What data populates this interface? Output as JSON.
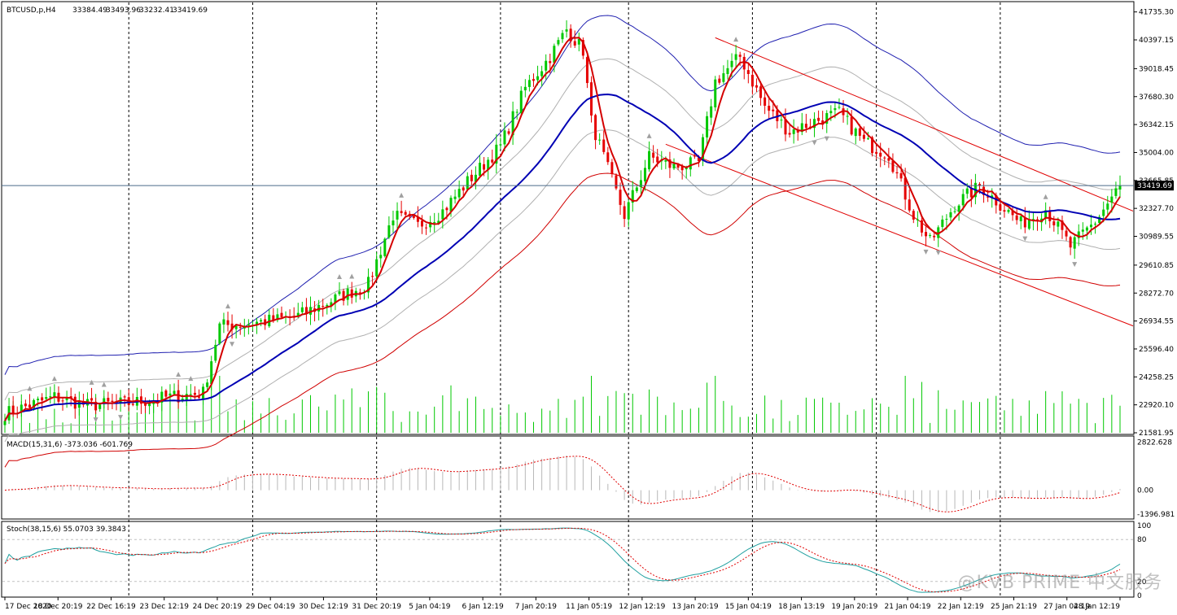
{
  "chart_data": {
    "type": "candlestick",
    "symbol_header": "BTCUSD,p,H4",
    "ohlc_readout": [
      "33384.49",
      "33493.96",
      "33232.41",
      "33419.69"
    ],
    "current_price": 33419.69,
    "current_price_label": "33419.69",
    "price_axis": {
      "ylim": [
        21581.95,
        42073.0
      ],
      "ticks": [
        41735.3,
        40397.15,
        39018.45,
        37680.3,
        36342.15,
        35004.0,
        33665.85,
        32327.7,
        30989.55,
        29610.85,
        28272.7,
        26934.55,
        25596.4,
        24258.25,
        22920.1,
        21581.95
      ],
      "tick_labels": [
        "41735.30",
        "40397.15",
        "39018.45",
        "37680.30",
        "36342.15",
        "35004.00",
        "33665.85",
        "32327.70",
        "30989.55",
        "29610.85",
        "28272.70",
        "26934.55",
        "25596.40",
        "24258.25",
        "22920.10",
        "21581.95"
      ]
    },
    "time_axis": {
      "labels": [
        "17 Dec 2020",
        "18 Dec 20:19",
        "22 Dec 16:19",
        "23 Dec 12:19",
        "24 Dec 20:19",
        "29 Dec 04:19",
        "30 Dec 12:19",
        "31 Dec 20:19",
        "5 Jan 04:19",
        "6 Jan 12:19",
        "7 Jan 20:19",
        "11 Jan 05:19",
        "12 Jan 12:19",
        "13 Jan 20:19",
        "15 Jan 04:19",
        "18 Jan 13:19",
        "19 Jan 20:19",
        "21 Jan 04:19",
        "22 Jan 12:19",
        "25 Jan 21:19",
        "27 Jan 04:19",
        "28 Jan 12:19"
      ],
      "day_separators": 8
    },
    "anchors_close": [
      [
        0,
        22500
      ],
      [
        12,
        23300
      ],
      [
        20,
        22900
      ],
      [
        30,
        23000
      ],
      [
        40,
        23300
      ],
      [
        48,
        23500
      ],
      [
        52,
        26700
      ],
      [
        58,
        26800
      ],
      [
        70,
        27100
      ],
      [
        80,
        28000
      ],
      [
        88,
        28700
      ],
      [
        94,
        32000
      ],
      [
        100,
        31500
      ],
      [
        106,
        32200
      ],
      [
        112,
        33600
      ],
      [
        120,
        35300
      ],
      [
        126,
        38100
      ],
      [
        132,
        39600
      ],
      [
        136,
        40900
      ],
      [
        140,
        39900
      ],
      [
        142,
        36500
      ],
      [
        146,
        34200
      ],
      [
        150,
        32000
      ],
      [
        156,
        34800
      ],
      [
        162,
        34300
      ],
      [
        168,
        34500
      ],
      [
        172,
        38400
      ],
      [
        178,
        39600
      ],
      [
        184,
        37200
      ],
      [
        190,
        36000
      ],
      [
        196,
        36500
      ],
      [
        202,
        36900
      ],
      [
        208,
        35500
      ],
      [
        214,
        34900
      ],
      [
        220,
        32000
      ],
      [
        224,
        30700
      ],
      [
        230,
        32500
      ],
      [
        236,
        33400
      ],
      [
        240,
        32700
      ],
      [
        246,
        31600
      ],
      [
        252,
        32300
      ],
      [
        258,
        30500
      ],
      [
        264,
        31700
      ],
      [
        270,
        33419.69
      ]
    ],
    "volume": {
      "ylim": [
        0,
        1
      ],
      "values_note": "relative tick volume"
    },
    "macd": {
      "label": "MACD(15,31,6) -373.036 -601.769",
      "ylim": [
        -1600,
        3000
      ],
      "tick_labels": [
        "2822.628",
        "0.00",
        "-1396.981"
      ],
      "ticks": [
        2822.628,
        0,
        -1396.981
      ]
    },
    "stoch": {
      "label": "Stoch(38,15,6) 55.0703 39.3843",
      "ylim": [
        0,
        100
      ],
      "tick_labels": [
        "100",
        "80",
        "20",
        "0"
      ],
      "ticks": [
        100,
        80,
        20,
        0
      ]
    },
    "watermark": "@KVB PRIME 中文服务",
    "colors": {
      "bull": "#00c800",
      "bear": "#e60000",
      "ma_fast": "#d40000",
      "ma_mid": "#0000b4",
      "band_outer_upper": "#2020b0",
      "band_outer_lower": "#d00000",
      "band_inner": "#b0b0b0",
      "volume": "#00c800",
      "macd_hist": "#b8b8b8",
      "macd_signal": "#e00000",
      "stoch_main": "#20a0a0",
      "stoch_signal": "#e00000",
      "channel": "#e00000",
      "fractal": "#a0a0a0",
      "grid_sep": "#000000",
      "price_line": "#4a6a8a"
    }
  }
}
